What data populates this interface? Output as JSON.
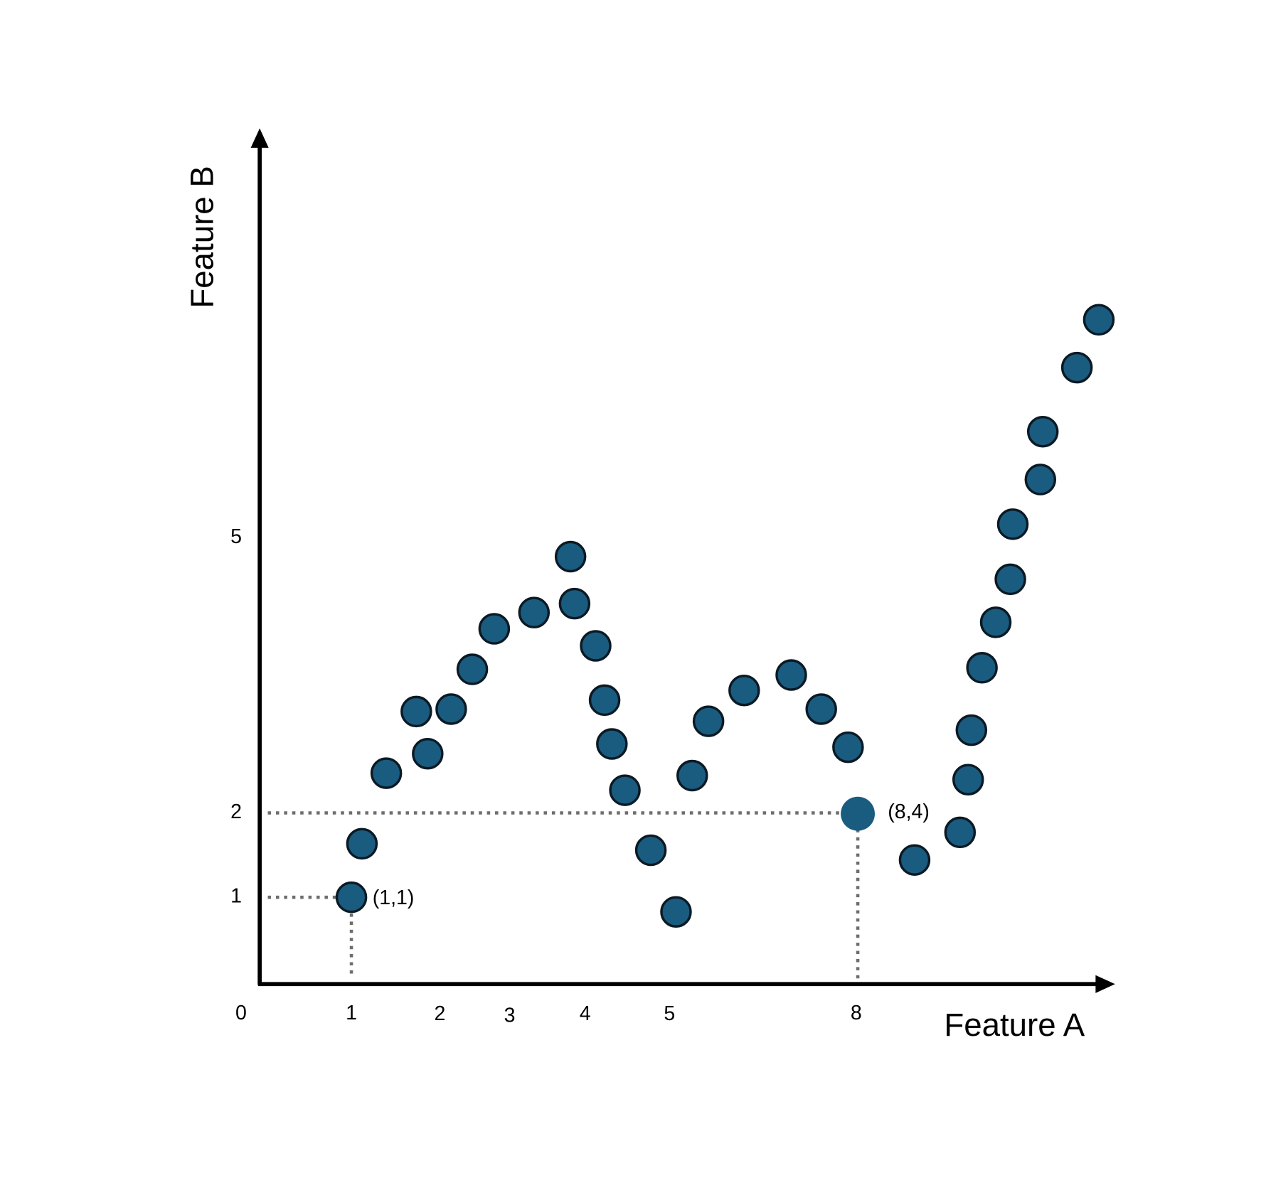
{
  "axes": {
    "x_label": "Feature A",
    "y_label": "Feature B",
    "x_ticks": [
      "0",
      "1",
      "2",
      "3",
      "4",
      "5",
      "8"
    ],
    "y_ticks": [
      "1",
      "2",
      "5"
    ]
  },
  "annotations": [
    "(1,1)",
    "(8,4)"
  ]
}
